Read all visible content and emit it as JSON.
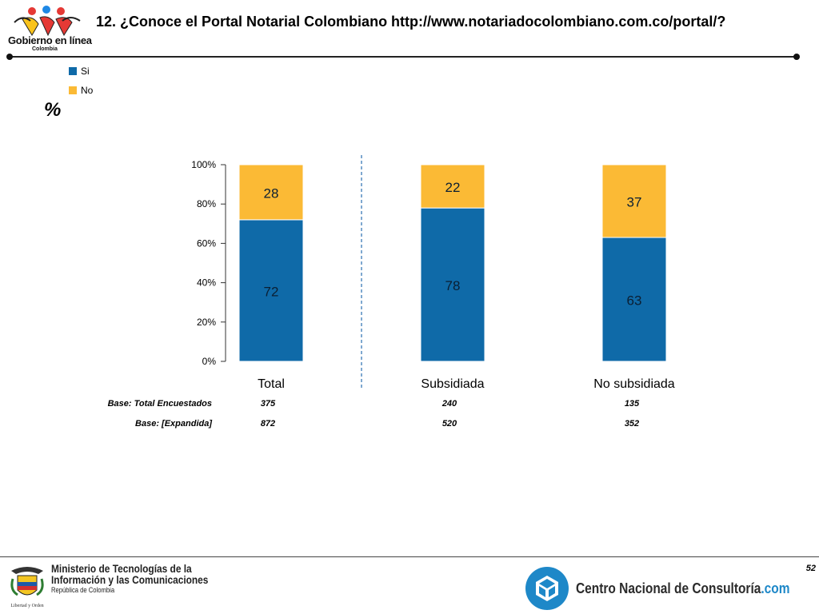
{
  "header": {
    "title": "12. ¿Conoce el Portal Notarial Colombiano http://www.notariadocolombiano.com.co/portal/?",
    "logo_text": "Gobierno en línea",
    "logo_sub": "Colombia"
  },
  "legend": {
    "items": [
      {
        "label": "Si",
        "color": "#0f6aa8"
      },
      {
        "label": "No",
        "color": "#fbba35"
      }
    ]
  },
  "unit_label": "%",
  "chart_data": {
    "type": "bar",
    "stacked": true,
    "categories": [
      "Total",
      "Subsidiada",
      "No subsidiada"
    ],
    "series": [
      {
        "name": "Si",
        "values": [
          72,
          78,
          63
        ],
        "color": "#0f6aa8"
      },
      {
        "name": "No",
        "values": [
          28,
          22,
          37
        ],
        "color": "#fbba35"
      }
    ],
    "ylim": [
      0,
      100
    ],
    "yticks": [
      "0%",
      "20%",
      "40%",
      "60%",
      "80%",
      "100%"
    ],
    "grid": false,
    "legend_position": "top-left",
    "annotations": "dashed vertical separator between Total and Subsidiada"
  },
  "bases": [
    {
      "label": "Base: Total Encuestados",
      "values": [
        "375",
        "240",
        "135"
      ]
    },
    {
      "label": "Base: [Expandida]",
      "values": [
        "872",
        "520",
        "352"
      ]
    }
  ],
  "footer": {
    "ministry_line1": "Ministerio de Tecnologías de la",
    "ministry_line2": "Información y las Comunicaciones",
    "ministry_line3": "República de Colombia",
    "crest_motto": "Libertad y Orden",
    "cnc_text_main": "Centro Nacional de Consultoría",
    "cnc_text_com": ".com",
    "page_number": "52"
  }
}
